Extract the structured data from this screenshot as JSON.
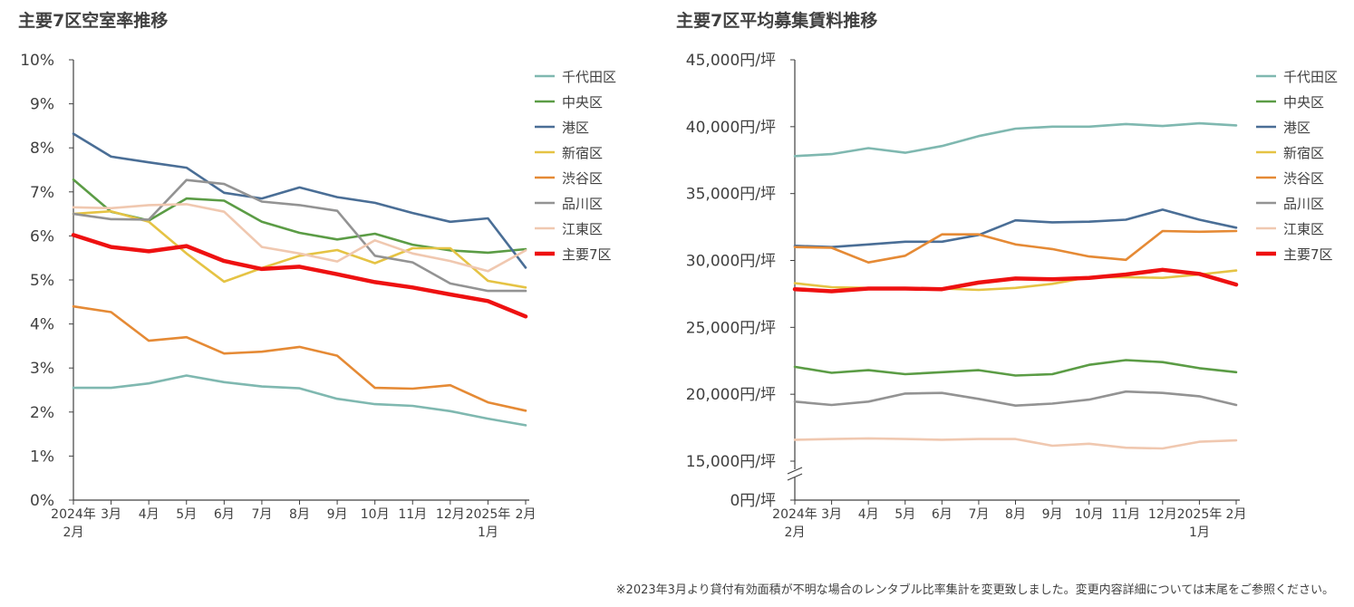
{
  "chart_data": [
    {
      "type": "line",
      "title": "主要7区空室率推移",
      "x": [
        "2024年2月",
        "3月",
        "4月",
        "5月",
        "6月",
        "7月",
        "8月",
        "9月",
        "10月",
        "11月",
        "12月",
        "2025年1月",
        "2月"
      ],
      "yticks": [
        "0%",
        "1%",
        "2%",
        "3%",
        "4%",
        "5%",
        "6%",
        "7%",
        "8%",
        "9%",
        "10%"
      ],
      "ylim": [
        0,
        10
      ],
      "legend": "right",
      "series": [
        {
          "name": "千代田区",
          "color": "#7fb8b0",
          "values": [
            2.55,
            2.55,
            2.65,
            2.83,
            2.68,
            2.58,
            2.54,
            2.3,
            2.18,
            2.14,
            2.02,
            1.85,
            1.7
          ]
        },
        {
          "name": "中央区",
          "color": "#5b9c45",
          "values": [
            7.28,
            6.55,
            6.35,
            6.85,
            6.8,
            6.32,
            6.07,
            5.92,
            6.05,
            5.8,
            5.67,
            5.62,
            5.7
          ]
        },
        {
          "name": "港区",
          "color": "#4a6e96",
          "values": [
            8.32,
            7.8,
            7.67,
            7.55,
            6.98,
            6.85,
            7.1,
            6.88,
            6.75,
            6.52,
            6.32,
            6.4,
            5.28
          ]
        },
        {
          "name": "新宿区",
          "color": "#e5c344",
          "values": [
            6.5,
            6.56,
            6.32,
            5.6,
            4.96,
            5.27,
            5.55,
            5.68,
            5.38,
            5.72,
            5.72,
            4.98,
            4.83
          ]
        },
        {
          "name": "渋谷区",
          "color": "#e58a35",
          "values": [
            4.4,
            4.27,
            3.62,
            3.7,
            3.33,
            3.37,
            3.48,
            3.28,
            2.55,
            2.53,
            2.61,
            2.22,
            2.03
          ]
        },
        {
          "name": "品川区",
          "color": "#939393",
          "values": [
            6.5,
            6.38,
            6.37,
            7.27,
            7.18,
            6.78,
            6.7,
            6.57,
            5.55,
            5.4,
            4.92,
            4.75,
            4.75
          ]
        },
        {
          "name": "江東区",
          "color": "#f0c8b0",
          "values": [
            6.65,
            6.63,
            6.7,
            6.72,
            6.55,
            5.75,
            5.6,
            5.42,
            5.9,
            5.6,
            5.43,
            5.2,
            5.67
          ]
        },
        {
          "name": "主要7区",
          "color": "#ee1111",
          "bold": true,
          "values": [
            6.02,
            5.75,
            5.65,
            5.77,
            5.43,
            5.25,
            5.3,
            5.13,
            4.95,
            4.83,
            4.67,
            4.52,
            4.17
          ]
        }
      ]
    },
    {
      "type": "line",
      "title": "主要7区平均募集賃料推移",
      "x": [
        "2024年2月",
        "3月",
        "4月",
        "5月",
        "6月",
        "7月",
        "8月",
        "9月",
        "10月",
        "11月",
        "12月",
        "2025年1月",
        "2月"
      ],
      "yticks": [
        "0円/坪",
        "15,000円/坪",
        "20,000円/坪",
        "25,000円/坪",
        "30,000円/坪",
        "35,000円/坪",
        "40,000円/坪",
        "45,000円/坪"
      ],
      "ylim": [
        15000,
        45000
      ],
      "axis_break": true,
      "legend": "right",
      "series": [
        {
          "name": "千代田区",
          "color": "#7fb8b0",
          "values": [
            37800,
            37950,
            38400,
            38050,
            38550,
            39300,
            39850,
            40000,
            40000,
            40200,
            40050,
            40250,
            40100
          ]
        },
        {
          "name": "中央区",
          "color": "#5b9c45",
          "values": [
            22050,
            21600,
            21800,
            21500,
            21650,
            21800,
            21400,
            21500,
            22200,
            22550,
            22400,
            21950,
            21650
          ]
        },
        {
          "name": "港区",
          "color": "#4a6e96",
          "values": [
            31100,
            31000,
            31200,
            31400,
            31400,
            31900,
            33000,
            32850,
            32900,
            33050,
            33800,
            33050,
            32450
          ]
        },
        {
          "name": "新宿区",
          "color": "#e5c344",
          "values": [
            28300,
            28000,
            27950,
            27950,
            27900,
            27800,
            27950,
            28250,
            28750,
            28750,
            28700,
            28950,
            29250
          ]
        },
        {
          "name": "渋谷区",
          "color": "#e58a35",
          "values": [
            31000,
            30950,
            29850,
            30350,
            31950,
            31950,
            31200,
            30850,
            30300,
            30050,
            32200,
            32150,
            32200
          ]
        },
        {
          "name": "品川区",
          "color": "#939393",
          "values": [
            19450,
            19200,
            19450,
            20050,
            20100,
            19650,
            19150,
            19300,
            19600,
            20200,
            20100,
            19850,
            19200
          ]
        },
        {
          "name": "江東区",
          "color": "#f0c8b0",
          "values": [
            16600,
            16650,
            16700,
            16650,
            16600,
            16650,
            16650,
            16150,
            16300,
            16000,
            15950,
            16450,
            16550
          ]
        },
        {
          "name": "主要7区",
          "color": "#ee1111",
          "bold": true,
          "values": [
            27850,
            27700,
            27900,
            27900,
            27850,
            28350,
            28650,
            28600,
            28700,
            28950,
            29300,
            29000,
            28200
          ]
        }
      ]
    }
  ],
  "footnote": "※2023年3月より貸付有効面積が不明な場合のレンタブル比率集計を変更致しました。変更内容詳細については末尾をご参照ください。"
}
